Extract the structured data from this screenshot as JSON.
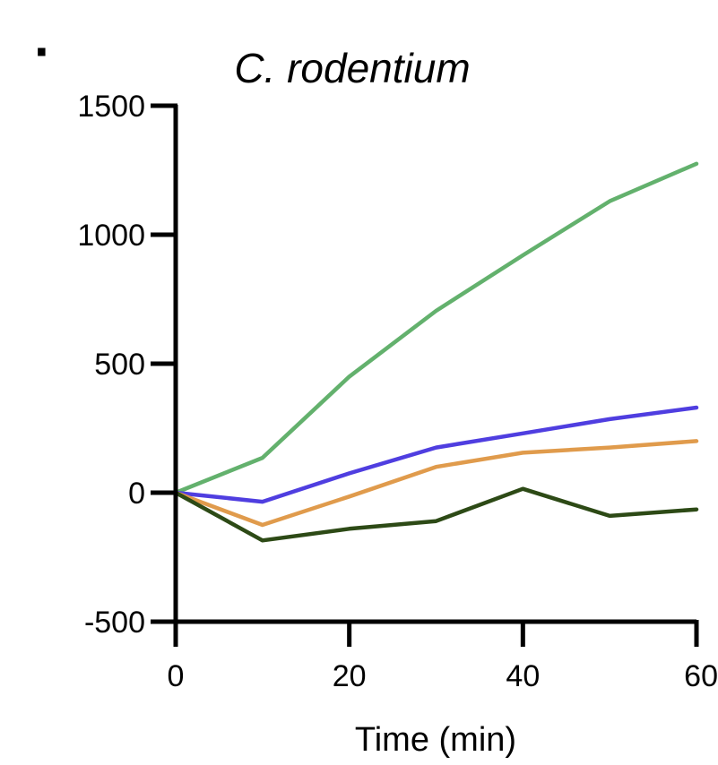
{
  "panel": {
    "marker": "·",
    "left_edge_tick_fragment": "0",
    "right_edge_tick_fragment": "60"
  },
  "chart_data": {
    "type": "line",
    "title": "C. rodentium",
    "xlabel": "Time (min)",
    "ylabel": "",
    "xlim": [
      0,
      60
    ],
    "ylim": [
      -500,
      1500
    ],
    "xticks": [
      "0",
      "20",
      "40",
      "60"
    ],
    "yticks": [
      "1500",
      "1000",
      "500",
      "0",
      "-500"
    ],
    "grid": false,
    "x": [
      0,
      10,
      20,
      30,
      40,
      50,
      60
    ],
    "series": [
      {
        "color": "#63b16d",
        "values": [
          0,
          135,
          450,
          705,
          920,
          1130,
          1275
        ]
      },
      {
        "color": "#4f3ee0",
        "values": [
          0,
          -35,
          75,
          175,
          230,
          285,
          330
        ]
      },
      {
        "color": "#e09b4c",
        "values": [
          0,
          -125,
          -15,
          100,
          155,
          175,
          200
        ]
      },
      {
        "color": "#2d4a16",
        "values": [
          0,
          -185,
          -140,
          -110,
          15,
          -90,
          -65
        ]
      }
    ]
  }
}
